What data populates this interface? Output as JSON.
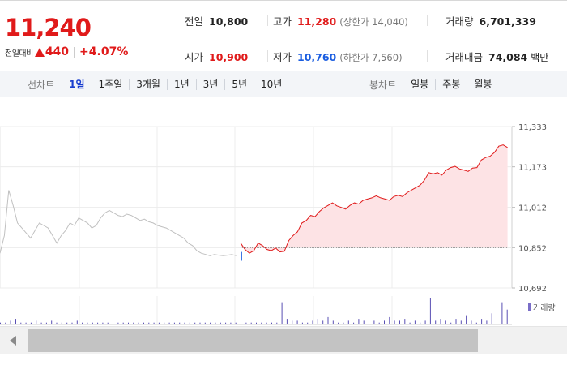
{
  "header": {
    "current_price": "11,240",
    "change_label": "전일대비",
    "change_amount": "440",
    "change_percent": "+4.07%",
    "stats": {
      "prev_close": {
        "label": "전일",
        "value": "10,800"
      },
      "high": {
        "label": "고가",
        "value": "11,280",
        "note": "(상한가 14,040)"
      },
      "volume": {
        "label": "거래량",
        "value": "6,701,339"
      },
      "open": {
        "label": "시가",
        "value": "10,900"
      },
      "low": {
        "label": "저가",
        "value": "10,760",
        "note": "(하한가 7,560)"
      },
      "trade_value": {
        "label": "거래대금",
        "value": "74,084",
        "unit": "백만"
      }
    }
  },
  "tabs": {
    "line_title": "선차트",
    "line_tabs": [
      "1일",
      "1주일",
      "3개월",
      "1년",
      "3년",
      "5년",
      "10년"
    ],
    "line_active": "1일",
    "candle_title": "봉차트",
    "candle_tabs": [
      "일봉",
      "주봉",
      "월봉"
    ]
  },
  "chart_data": {
    "type": "line",
    "y_ticks": [
      "11,333",
      "11,173",
      "11,012",
      "10,852",
      "10,692"
    ],
    "ylim": [
      10692,
      11333
    ],
    "volume_legend": "거래량",
    "reference_price": 10852,
    "series": [
      {
        "color": "#c0c0c0",
        "values": [
          10830,
          10900,
          11080,
          11020,
          10950,
          10930,
          10910,
          10890,
          10920,
          10950,
          10940,
          10930,
          10900,
          10870,
          10900,
          10920,
          10950,
          10940,
          10970,
          10960,
          10950,
          10930,
          10940,
          10970,
          10990,
          11000,
          10990,
          10980,
          10975,
          10985,
          10980,
          10970,
          10960,
          10965,
          10955,
          10950,
          10940,
          10935,
          10930,
          10920,
          10910,
          10900,
          10890,
          10870,
          10860,
          10840,
          10830,
          10825,
          10820,
          10825,
          10822,
          10820,
          10822,
          10825,
          10820
        ]
      },
      {
        "color": "#e01a1a",
        "values": [
          10870,
          10845,
          10830,
          10840,
          10870,
          10860,
          10845,
          10840,
          10850,
          10835,
          10838,
          10880,
          10900,
          10915,
          10950,
          10960,
          10980,
          10975,
          10995,
          11010,
          11020,
          11030,
          11018,
          11012,
          11005,
          11020,
          11030,
          11025,
          11040,
          11045,
          11050,
          11058,
          11050,
          11045,
          11040,
          11055,
          11060,
          11055,
          11070,
          11080,
          11090,
          11100,
          11120,
          11150,
          11145,
          11150,
          11140,
          11160,
          11170,
          11175,
          11165,
          11160,
          11155,
          11168,
          11170,
          11200,
          11210,
          11215,
          11230,
          11255,
          11260,
          11250
        ]
      }
    ],
    "volume": [
      1,
      1,
      2,
      3,
      1,
      1,
      1,
      2,
      1,
      1,
      2,
      1,
      1,
      1,
      1,
      2,
      1,
      1,
      1,
      1,
      1,
      1,
      1,
      1,
      1,
      1,
      1,
      1,
      1,
      1,
      1,
      1,
      1,
      1,
      1,
      1,
      1,
      1,
      1,
      1,
      1,
      1,
      1,
      1,
      1,
      1,
      1,
      1,
      1,
      1,
      1,
      1,
      1,
      1,
      1,
      12,
      3,
      2,
      2,
      1,
      1,
      2,
      3,
      2,
      4,
      2,
      1,
      1,
      2,
      1,
      3,
      2,
      1,
      2,
      1,
      2,
      4,
      2,
      2,
      3,
      1,
      2,
      1,
      2,
      14,
      2,
      3,
      2,
      1,
      3,
      2,
      5,
      2,
      1,
      3,
      2,
      6,
      3,
      12,
      8
    ]
  }
}
